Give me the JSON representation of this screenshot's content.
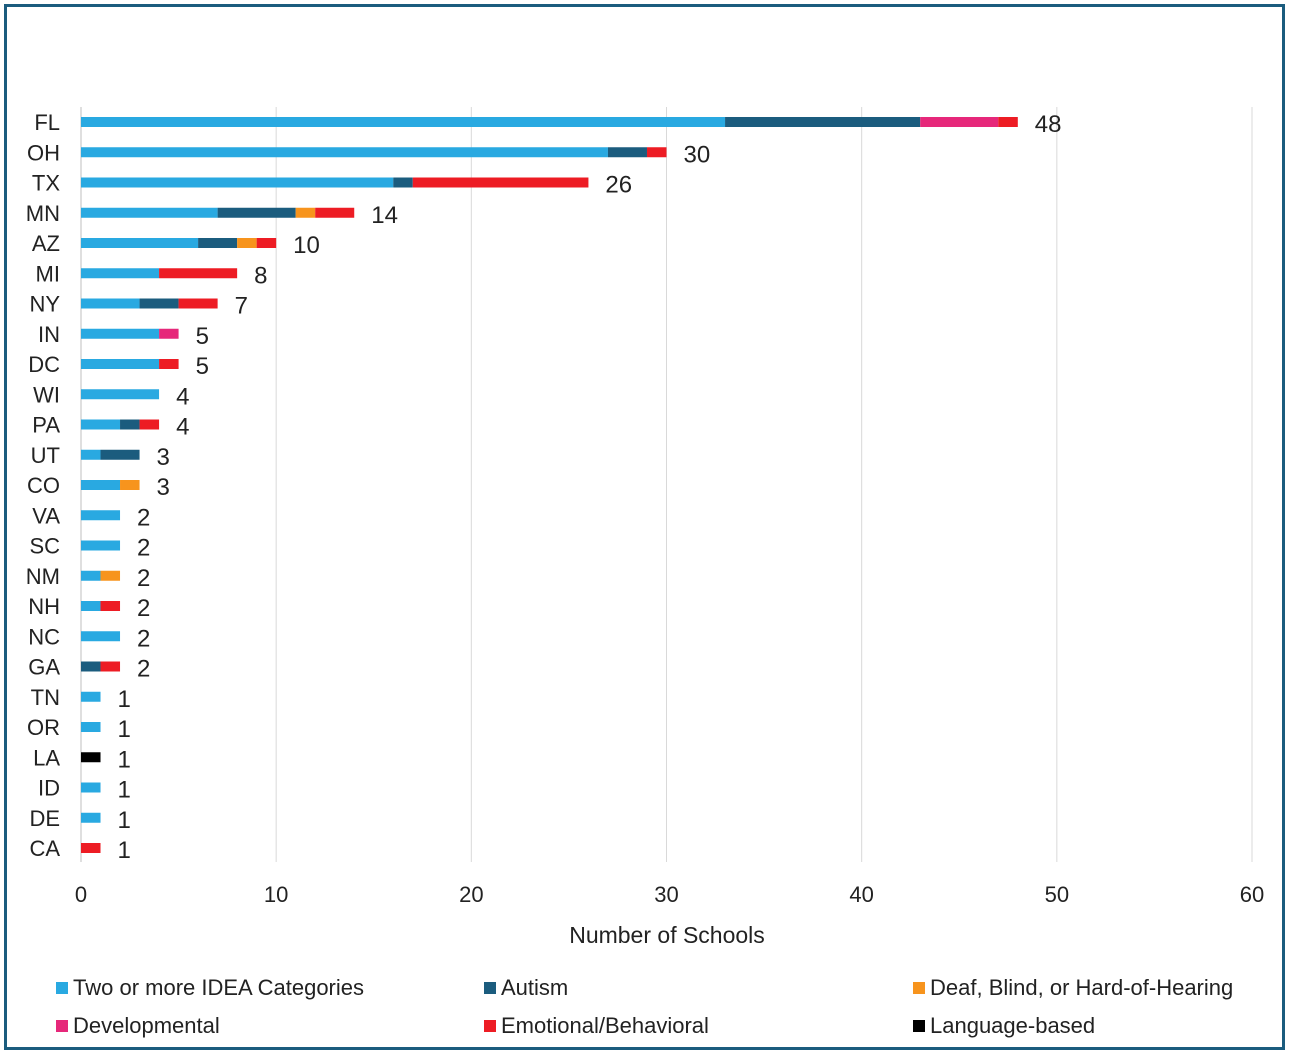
{
  "chart_data": {
    "type": "bar",
    "orientation": "horizontal",
    "stacked": true,
    "title": "",
    "xlabel": "Number of Schools",
    "ylabel": "",
    "xlim": [
      0,
      60
    ],
    "x_ticks": [
      "0",
      "10",
      "20",
      "30",
      "40",
      "50",
      "60"
    ],
    "grid": "vertical",
    "legend_position": "bottom",
    "categories": [
      "FL",
      "OH",
      "TX",
      "MN",
      "AZ",
      "MI",
      "NY",
      "IN",
      "DC",
      "WI",
      "PA",
      "UT",
      "CO",
      "VA",
      "SC",
      "NM",
      "NH",
      "NC",
      "GA",
      "TN",
      "OR",
      "LA",
      "ID",
      "DE",
      "CA"
    ],
    "totals": [
      48,
      30,
      26,
      14,
      10,
      8,
      7,
      5,
      5,
      4,
      4,
      3,
      3,
      2,
      2,
      2,
      2,
      2,
      2,
      1,
      1,
      1,
      1,
      1,
      1
    ],
    "series": [
      {
        "name": "Two or more IDEA Categories",
        "color": "#29a9e1",
        "values": [
          33,
          27,
          16,
          7,
          6,
          4,
          3,
          4,
          4,
          4,
          2,
          1,
          2,
          2,
          2,
          1,
          1,
          2,
          0,
          1,
          1,
          0,
          1,
          1,
          0
        ]
      },
      {
        "name": "Autism",
        "color": "#1b5c7e",
        "values": [
          10,
          2,
          1,
          4,
          2,
          0,
          2,
          0,
          0,
          0,
          1,
          2,
          0,
          0,
          0,
          0,
          0,
          0,
          1,
          0,
          0,
          0,
          0,
          0,
          0
        ]
      },
      {
        "name": "Deaf, Blind, or Hard-of-Hearing",
        "color": "#f7941d",
        "values": [
          0,
          0,
          0,
          1,
          1,
          0,
          0,
          0,
          0,
          0,
          0,
          0,
          1,
          0,
          0,
          1,
          0,
          0,
          0,
          0,
          0,
          0,
          0,
          0,
          0
        ]
      },
      {
        "name": "Developmental",
        "color": "#e6287a",
        "values": [
          4,
          0,
          0,
          0,
          0,
          0,
          0,
          1,
          0,
          0,
          0,
          0,
          0,
          0,
          0,
          0,
          0,
          0,
          0,
          0,
          0,
          0,
          0,
          0,
          0
        ]
      },
      {
        "name": "Emotional/Behavioral",
        "color": "#ed1c24",
        "values": [
          1,
          1,
          9,
          2,
          1,
          4,
          2,
          0,
          1,
          0,
          1,
          0,
          0,
          0,
          0,
          0,
          1,
          0,
          1,
          0,
          0,
          0,
          0,
          0,
          1
        ]
      },
      {
        "name": "Language-based",
        "color": "#000000",
        "values": [
          0,
          0,
          0,
          0,
          0,
          0,
          0,
          0,
          0,
          0,
          0,
          0,
          0,
          0,
          0,
          0,
          0,
          0,
          0,
          0,
          0,
          1,
          0,
          0,
          0
        ]
      }
    ]
  }
}
